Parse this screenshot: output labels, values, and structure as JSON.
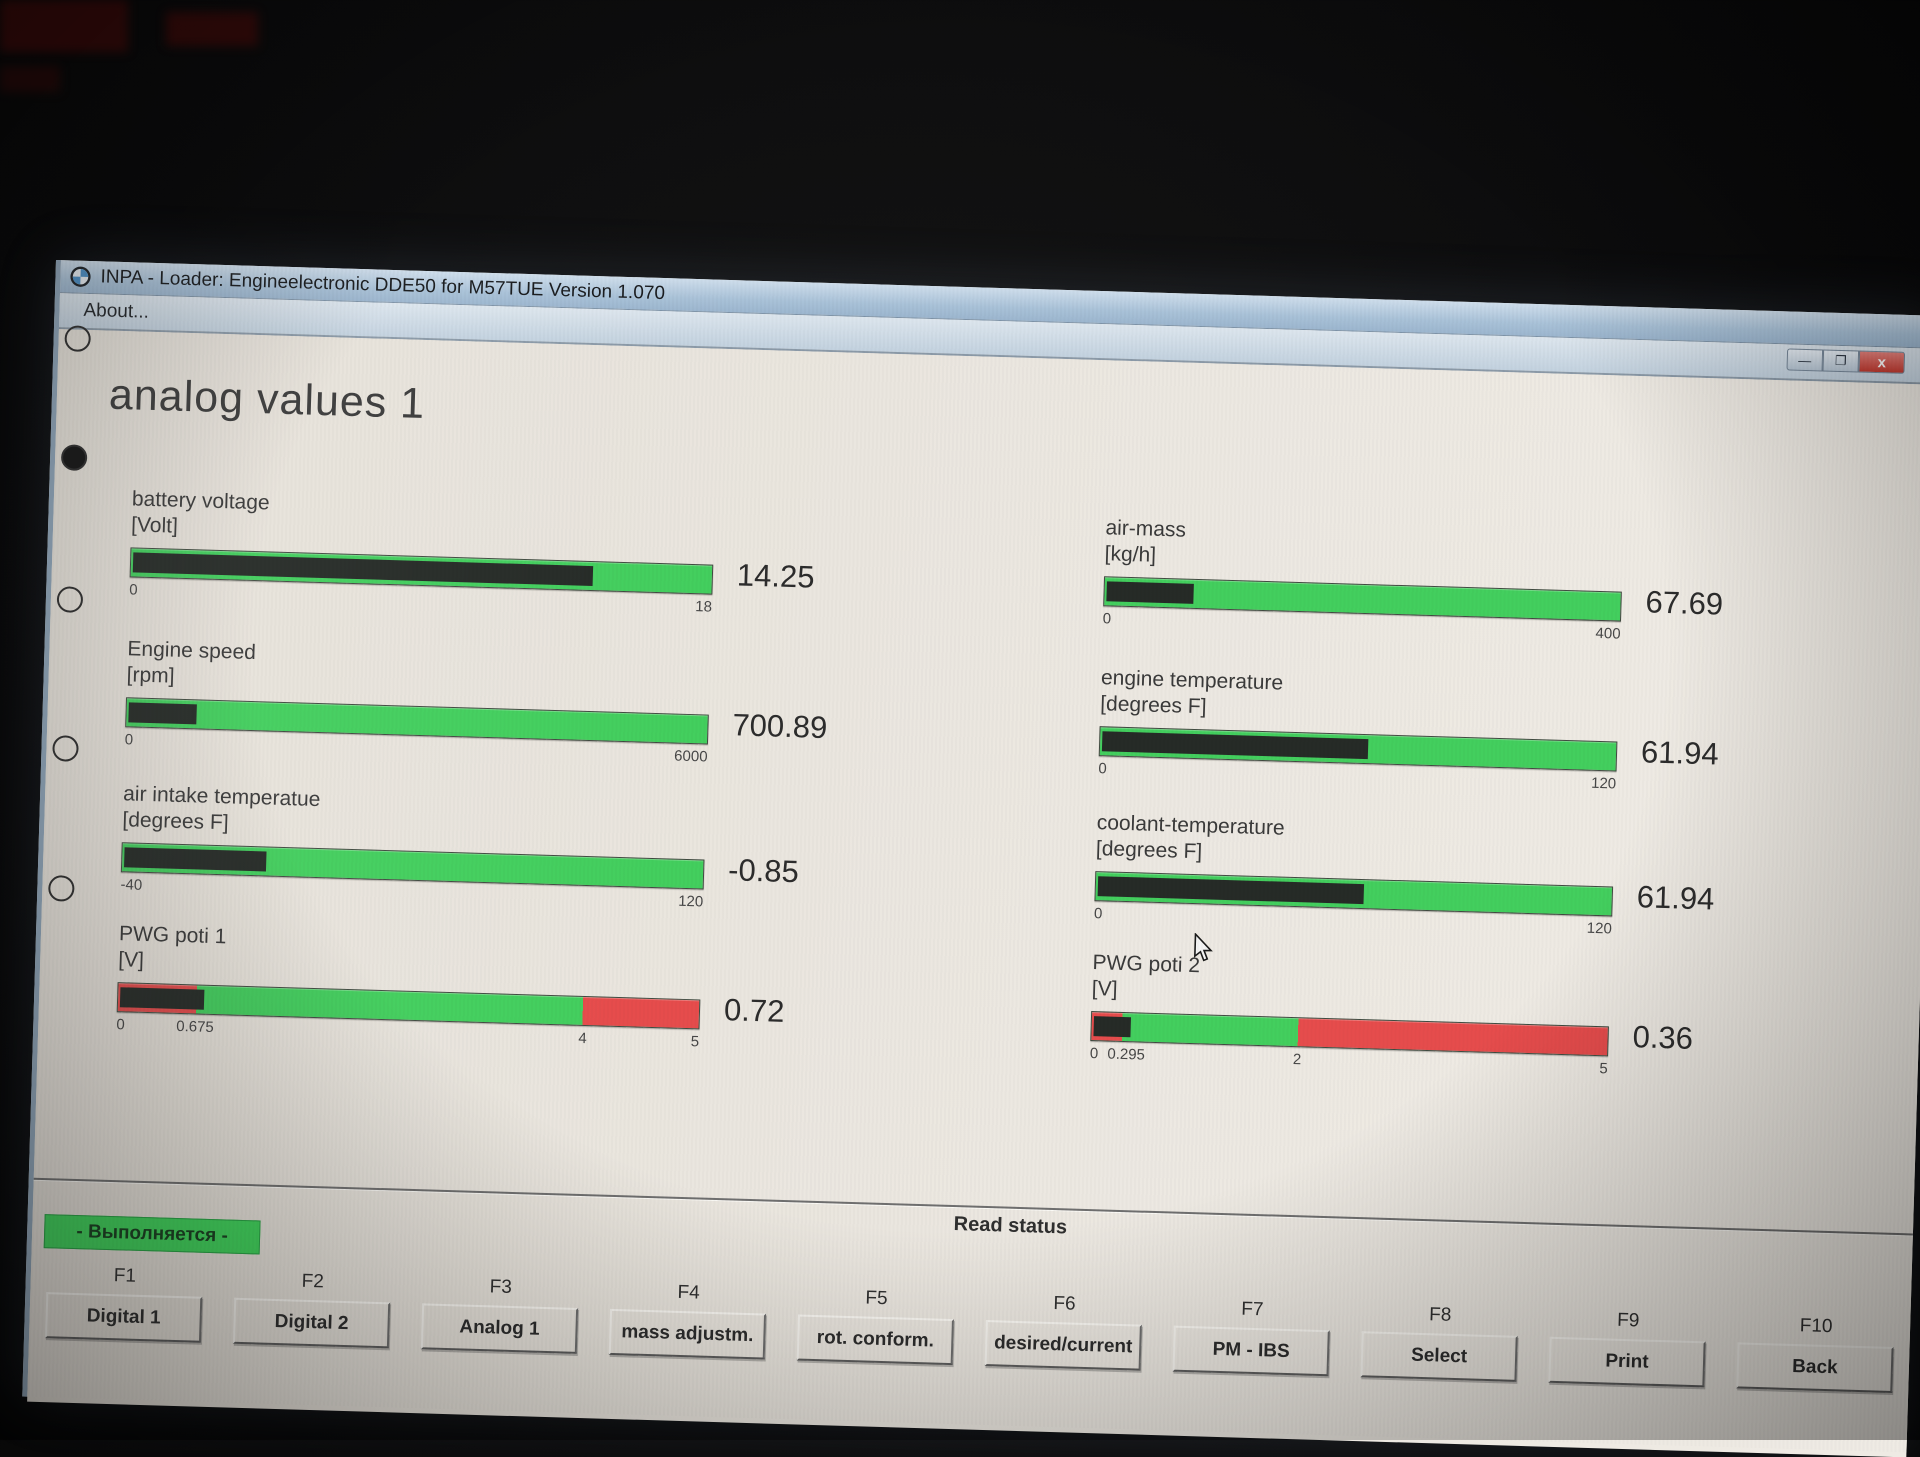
{
  "window": {
    "title": "INPA - Loader:  Engineelectronic DDE50 for M57TUE Version 1.070",
    "menu_about": "About...",
    "controls": {
      "minimize": "—",
      "maximize": "❐",
      "close": "x"
    }
  },
  "page": {
    "heading": "analog values 1"
  },
  "gauges": {
    "left": [
      {
        "label": "battery voltage",
        "unit": "[Volt]",
        "value": "14.25",
        "fill_pct": 79.2,
        "scale": [
          {
            "text": "0",
            "pos": 0
          },
          {
            "text": "18",
            "pos": 100
          }
        ]
      },
      {
        "label": "Engine speed",
        "unit": "[rpm]",
        "value": "700.89",
        "fill_pct": 11.7,
        "scale": [
          {
            "text": "0",
            "pos": 0
          },
          {
            "text": "6000",
            "pos": 100
          }
        ]
      },
      {
        "label": "air intake temperatue",
        "unit": "[degrees F]",
        "value": "-0.85",
        "fill_pct": 24.5,
        "scale": [
          {
            "text": "-40",
            "pos": 0
          },
          {
            "text": "120",
            "pos": 100
          }
        ]
      },
      {
        "label": "PWG poti 1",
        "unit": "[V]",
        "value": "0.72",
        "fill_pct": 14.4,
        "zones": [
          {
            "color": "red",
            "from": 0,
            "to": 13.5
          },
          {
            "color": "green",
            "from": 13.5,
            "to": 80
          },
          {
            "color": "red",
            "from": 80,
            "to": 100
          }
        ],
        "scale": [
          {
            "text": "0",
            "pos": 0
          },
          {
            "text": "0.675",
            "pos": 13.5
          },
          {
            "text": "4",
            "pos": 80
          },
          {
            "text": "5",
            "pos": 100
          }
        ]
      }
    ],
    "right": [
      {
        "label": "air-mass",
        "unit": "[kg/h]",
        "value": "67.69",
        "fill_pct": 16.9,
        "scale": [
          {
            "text": "0",
            "pos": 0
          },
          {
            "text": "400",
            "pos": 100
          }
        ]
      },
      {
        "label": "engine temperature",
        "unit": "[degrees F]",
        "value": "61.94",
        "fill_pct": 51.6,
        "scale": [
          {
            "text": "0",
            "pos": 0
          },
          {
            "text": "120",
            "pos": 100
          }
        ]
      },
      {
        "label": "coolant-temperature",
        "unit": "[degrees F]",
        "value": "61.94",
        "fill_pct": 51.6,
        "scale": [
          {
            "text": "0",
            "pos": 0
          },
          {
            "text": "120",
            "pos": 100
          }
        ]
      },
      {
        "label": "PWG poti 2",
        "unit": "[V]",
        "value": "0.36",
        "fill_pct": 7.2,
        "zones": [
          {
            "color": "red",
            "from": 0,
            "to": 5.9
          },
          {
            "color": "green",
            "from": 5.9,
            "to": 40
          },
          {
            "color": "red",
            "from": 40,
            "to": 100
          }
        ],
        "scale": [
          {
            "text": "0",
            "pos": 0
          },
          {
            "text": "0.295",
            "pos": 7
          },
          {
            "text": "2",
            "pos": 40
          },
          {
            "text": "5",
            "pos": 100
          }
        ]
      }
    ]
  },
  "statusbar": {
    "read_status": "Read status",
    "running_badge": "- Выполняется -"
  },
  "fkeys": [
    {
      "key": "F1",
      "label": "Digital 1"
    },
    {
      "key": "F2",
      "label": "Digital 2"
    },
    {
      "key": "F3",
      "label": "Analog 1"
    },
    {
      "key": "F4",
      "label": "mass adjustm."
    },
    {
      "key": "F5",
      "label": "rot. conform."
    },
    {
      "key": "F6",
      "label": "desired/current"
    },
    {
      "key": "F7",
      "label": "PM - IBS"
    },
    {
      "key": "F8",
      "label": "Select"
    },
    {
      "key": "F9",
      "label": "Print"
    },
    {
      "key": "F10",
      "label": "Back"
    }
  ],
  "colors": {
    "gauge_green": "#43cf5e",
    "gauge_red": "#e64c4c",
    "gauge_fill": "#262b27",
    "badge_green": "#3fd65b",
    "titlebar_blue": "#a9c2d8"
  }
}
